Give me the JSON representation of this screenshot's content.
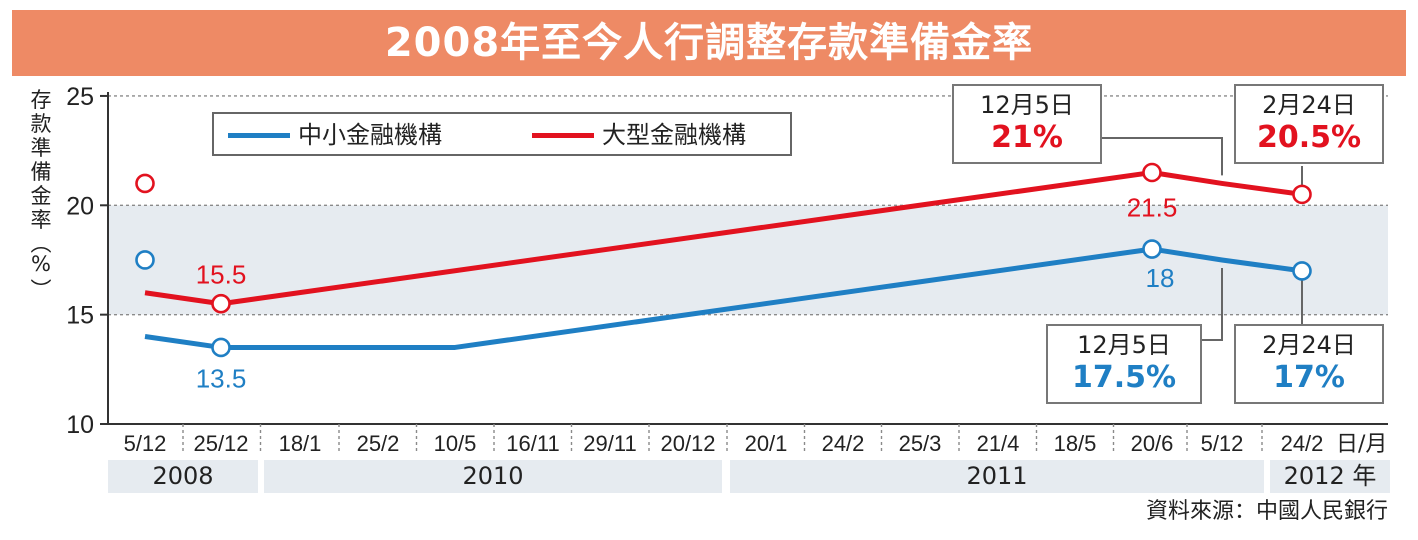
{
  "title": "2008年至今人行調整存款準備金率",
  "colors": {
    "title_bg": "#ee8a65",
    "small": "#1f7fc4",
    "large": "#e2121f",
    "band": "#e6ebf0"
  },
  "y_axis_title": "存款準備金率(%)",
  "legend": {
    "small_label": "中小金融機構",
    "large_label": "大型金融機構"
  },
  "source": "資料來源：中國人民銀行",
  "x_unit": "日/月",
  "years": [
    {
      "label": "2008"
    },
    {
      "label": "2010"
    },
    {
      "label": "2011"
    },
    {
      "label": "2012 年"
    }
  ],
  "callouts": {
    "large_dec5": {
      "date": "12月5日",
      "value": "21%"
    },
    "large_feb24": {
      "date": "2月24日",
      "value": "20.5%"
    },
    "small_dec5": {
      "date": "12月5日",
      "value": "17.5%"
    },
    "small_feb24": {
      "date": "2月24日",
      "value": "17%"
    }
  },
  "chart_data": {
    "type": "line",
    "x": [
      "5/12",
      "25/12",
      "18/1",
      "25/2",
      "10/5",
      "16/11",
      "29/11",
      "20/12",
      "20/1",
      "24/2",
      "25/3",
      "21/4",
      "18/5",
      "20/6",
      "5/12",
      "24/2"
    ],
    "x_unit": "日/月",
    "ylabel": "存款準備金率(%)",
    "ylim": [
      10,
      25
    ],
    "yticks": [
      10,
      15,
      20,
      25
    ],
    "shaded_band": [
      15,
      20
    ],
    "series": [
      {
        "name": "中小金融機構",
        "color": "#1f7fc4",
        "values": [
          14,
          13.5,
          null,
          null,
          13.5,
          null,
          null,
          null,
          null,
          null,
          null,
          null,
          null,
          18,
          17.5,
          17
        ]
      },
      {
        "name": "大型金融機構",
        "color": "#e2121f",
        "values": [
          16,
          15.5,
          null,
          null,
          null,
          null,
          null,
          null,
          null,
          null,
          null,
          null,
          null,
          21.5,
          21,
          20.5
        ]
      }
    ],
    "markers": [
      {
        "series": "中小金融機構",
        "x": "25/12",
        "value": 13.5,
        "label": "13.5"
      },
      {
        "series": "中小金融機構",
        "x": "20/6",
        "value": 18,
        "label": "18"
      },
      {
        "series": "中小金融機構",
        "x": "5/12",
        "value": 17.5
      },
      {
        "series": "中小金融機構",
        "x": "24/2",
        "value": 17
      },
      {
        "series": "大型金融機構",
        "x": "25/12",
        "value": 15.5,
        "label": "15.5"
      },
      {
        "series": "大型金融機構",
        "x": "20/6",
        "value": 21.5,
        "label": "21.5"
      },
      {
        "series": "大型金融機構",
        "x": "5/12",
        "value": 21
      },
      {
        "series": "大型金融機構",
        "x": "24/2",
        "value": 20.5
      }
    ]
  }
}
